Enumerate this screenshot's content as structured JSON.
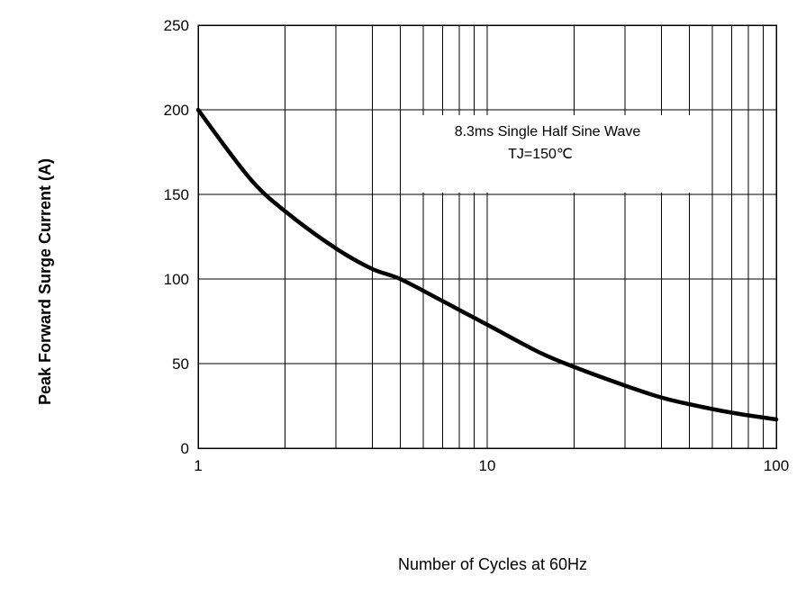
{
  "chart_data": {
    "type": "line",
    "xlabel": "Number of Cycles at 60Hz",
    "ylabel": "Peak Forward Surge Current (A)",
    "xscale": "log",
    "xlim": [
      1,
      100
    ],
    "ylim": [
      0,
      250
    ],
    "x_ticks": [
      1,
      10,
      100
    ],
    "x_tick_labels": [
      "1",
      "10",
      "100"
    ],
    "y_ticks": [
      0,
      50,
      100,
      150,
      200,
      250
    ],
    "y_tick_labels": [
      "0",
      "50",
      "100",
      "150",
      "200",
      "250"
    ],
    "grid": true,
    "annotation": {
      "line1": "8.3ms Single Half Sine Wave",
      "line2": "TJ=150℃"
    },
    "series": [
      {
        "x": [
          1,
          1.5,
          2,
          3,
          4,
          5,
          7,
          10,
          15,
          20,
          30,
          40,
          50,
          70,
          100
        ],
        "y": [
          200,
          160,
          140,
          118,
          106,
          100,
          87,
          73,
          57,
          48,
          37,
          30,
          26,
          21,
          17
        ]
      }
    ]
  }
}
